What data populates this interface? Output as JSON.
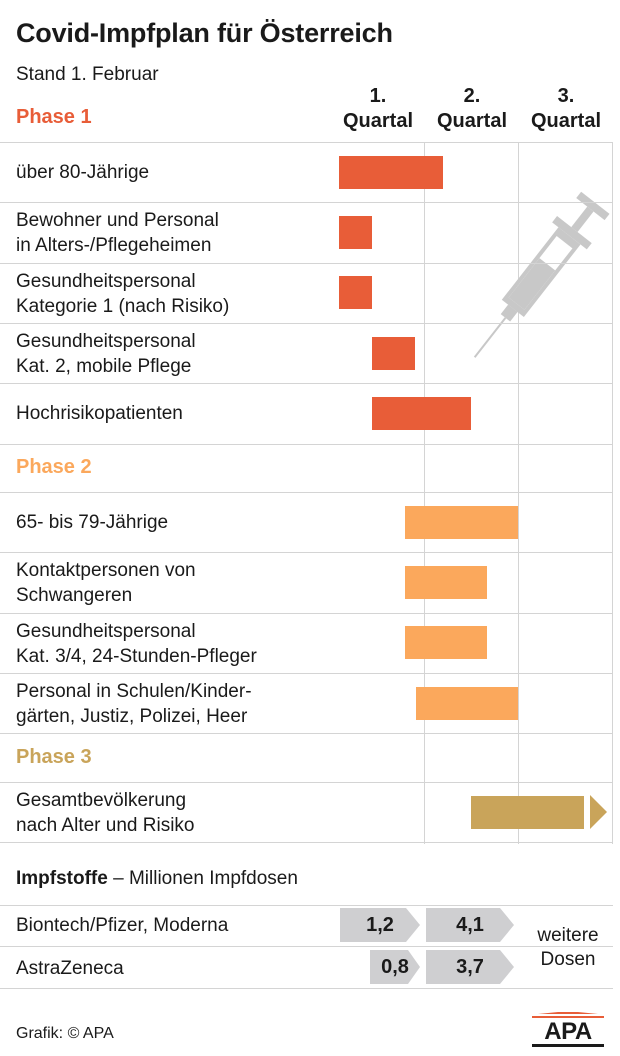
{
  "title": "Covid-Impfplan für Österreich",
  "subtitle": "Stand 1. Februar",
  "quarters": [
    {
      "line1": "1.",
      "line2": "Quartal"
    },
    {
      "line1": "2.",
      "line2": "Quartal"
    },
    {
      "line1": "3.",
      "line2": "Quartal"
    }
  ],
  "colors": {
    "phase1": "#e85d38",
    "phase2": "#fba85c",
    "phase3": "#c9a45a",
    "dose_box": "#cfcfd1",
    "grid": "#d4d4d4"
  },
  "chart_data": {
    "type": "bar",
    "subtype": "gantt",
    "x_unit": "Quartal",
    "xlim": [
      1,
      4
    ],
    "phases": [
      {
        "name": "Phase 1",
        "rows": [
          {
            "label": [
              "über 80-Jährige"
            ],
            "start": 1.1,
            "end": 2.2
          },
          {
            "label": [
              "Bewohner und Personal",
              "in Alters-/Pflegeheimen"
            ],
            "start": 1.1,
            "end": 1.45
          },
          {
            "label": [
              "Gesundheitspersonal",
              "Kategorie 1 (nach Risiko)"
            ],
            "start": 1.1,
            "end": 1.45
          },
          {
            "label": [
              "Gesundheitspersonal",
              "Kat. 2, mobile Pflege"
            ],
            "start": 1.45,
            "end": 1.9
          },
          {
            "label": [
              "Hochrisikopatienten"
            ],
            "start": 1.45,
            "end": 2.5
          }
        ]
      },
      {
        "name": "Phase 2",
        "rows": [
          {
            "label": [
              "65- bis 79-Jährige"
            ],
            "start": 1.8,
            "end": 3.0
          },
          {
            "label": [
              "Kontaktpersonen von",
              "Schwangeren"
            ],
            "start": 1.8,
            "end": 2.67
          },
          {
            "label": [
              "Gesundheitspersonal",
              "Kat. 3/4, 24-Stunden-Pfleger"
            ],
            "start": 1.8,
            "end": 2.67
          },
          {
            "label": [
              "Personal in Schulen/Kinder-",
              "gärten, Justiz, Polizei, Heer"
            ],
            "start": 1.92,
            "end": 3.0
          }
        ]
      },
      {
        "name": "Phase 3",
        "rows": [
          {
            "label": [
              "Gesamtbevölkerung",
              "nach Alter und Risiko"
            ],
            "start": 2.5,
            "end": 3.7,
            "continues": true
          }
        ]
      }
    ]
  },
  "impfstoffe": {
    "title": "Impfstoffe",
    "subtitle": "– Millionen Impfdosen",
    "rows": [
      {
        "label": "Biontech/Pfizer, Moderna",
        "q1": "1,2",
        "q2": "4,1"
      },
      {
        "label": "AstraZeneca",
        "q1": "0,8",
        "q2": "3,7"
      }
    ],
    "further": [
      "weitere",
      "Dosen"
    ]
  },
  "footer": "Grafik: © APA",
  "logo_text": "APA"
}
